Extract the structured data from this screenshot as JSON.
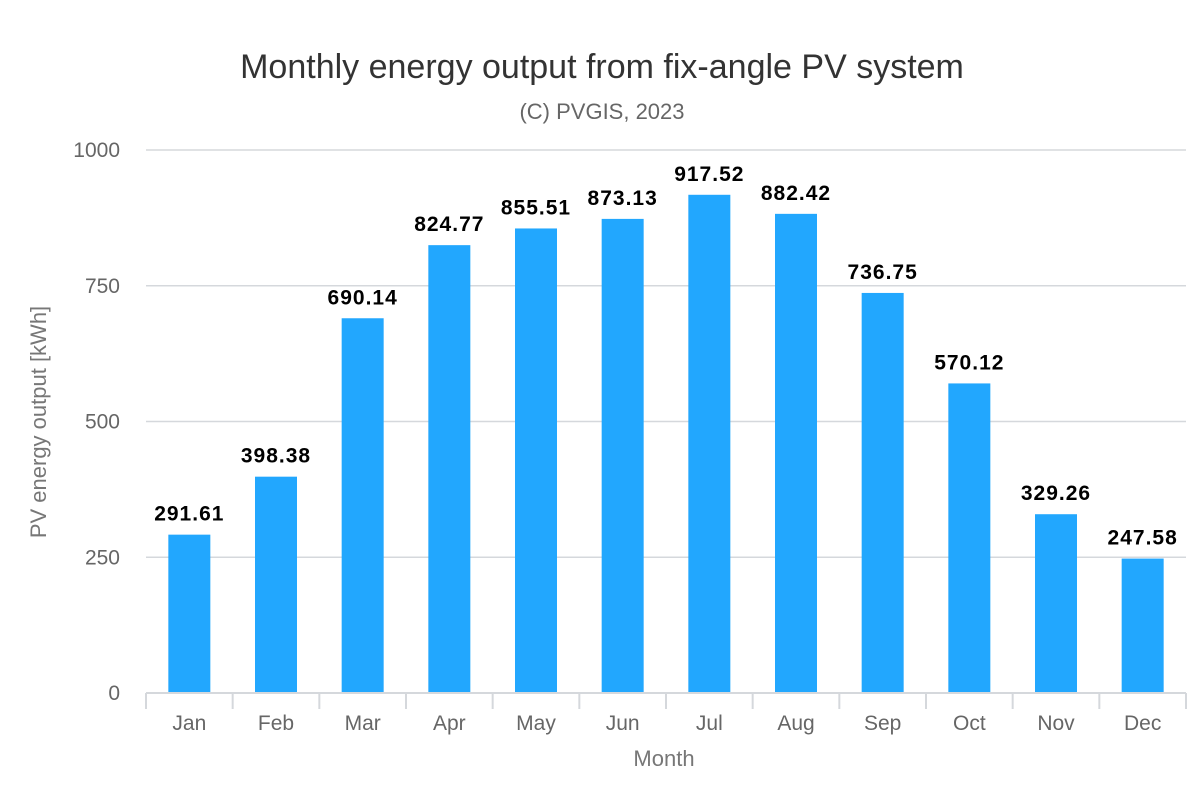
{
  "chart_data": {
    "type": "bar",
    "title": "Monthly energy output from fix-angle PV system",
    "subtitle": "(C) PVGIS, 2023",
    "xlabel": "Month",
    "ylabel": "PV energy output [kWh]",
    "categories": [
      "Jan",
      "Feb",
      "Mar",
      "Apr",
      "May",
      "Jun",
      "Jul",
      "Aug",
      "Sep",
      "Oct",
      "Nov",
      "Dec"
    ],
    "values": [
      291.61,
      398.38,
      690.14,
      824.77,
      855.51,
      873.13,
      917.52,
      882.42,
      736.75,
      570.12,
      329.26,
      247.58
    ],
    "data_labels": [
      "291.61",
      "398.38",
      "690.14",
      "824.77",
      "855.51",
      "873.13",
      "917.52",
      "882.42",
      "736.75",
      "570.12",
      "329.26",
      "247.58"
    ],
    "ylim": [
      0,
      1000
    ],
    "yticks": [
      "0",
      "250",
      "500",
      "750",
      "1000"
    ],
    "ytick_values": [
      0,
      250,
      500,
      750,
      1000
    ],
    "grid": true,
    "bar_color": "#22a7fe",
    "gridline_color": "#d5d8dc",
    "legend": "none"
  }
}
